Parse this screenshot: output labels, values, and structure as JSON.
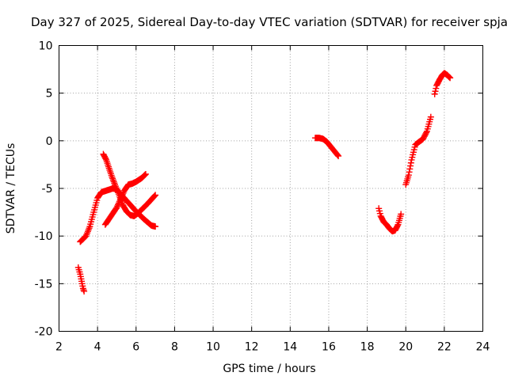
{
  "chart_data": {
    "type": "scatter",
    "title": "Day 327 of 2025, Sidereal Day-to-day VTEC variation (SDTVAR) for receiver spja",
    "xlabel": "GPS time / hours",
    "ylabel": "SDTVAR / TECUs",
    "xlim": [
      2,
      24
    ],
    "ylim": [
      -20,
      10
    ],
    "xticks": [
      "2",
      "4",
      "6",
      "8",
      "10",
      "12",
      "14",
      "16",
      "18",
      "20",
      "22",
      "24"
    ],
    "yticks": [
      "10",
      "5",
      "0",
      "-5",
      "-10",
      "-15",
      "-20"
    ],
    "grid": true,
    "marker": "plus",
    "color": "#ff0000",
    "series": [
      {
        "x": [
          3.0,
          3.1,
          3.15,
          3.2,
          3.25,
          3.3
        ],
        "y": [
          -13.3,
          -14.0,
          -14.5,
          -15.0,
          -15.5,
          -15.8
        ]
      },
      {
        "x": [
          3.1,
          3.2,
          3.4,
          3.6,
          3.8,
          4.0,
          4.2,
          4.5,
          4.8,
          5.0,
          5.2,
          5.6,
          6.0,
          6.4,
          6.8,
          7.0
        ],
        "y": [
          -10.6,
          -10.4,
          -10.0,
          -9.0,
          -7.5,
          -6.0,
          -5.4,
          -5.2,
          -5.0,
          -5.1,
          -5.6,
          -6.5,
          -7.4,
          -8.2,
          -8.9,
          -9.0
        ]
      },
      {
        "x": [
          4.3,
          4.45,
          4.6,
          4.75,
          4.9,
          5.1,
          5.3,
          5.5,
          5.7,
          5.9,
          6.1,
          6.3,
          6.6,
          7.0
        ],
        "y": [
          -1.4,
          -2.0,
          -2.9,
          -3.8,
          -4.6,
          -5.6,
          -6.7,
          -7.4,
          -7.8,
          -7.9,
          -7.6,
          -7.2,
          -6.6,
          -5.7
        ]
      },
      {
        "x": [
          4.4,
          4.7,
          5.0,
          5.2,
          5.4,
          5.6,
          5.8,
          6.0,
          6.3,
          6.5
        ],
        "y": [
          -8.8,
          -7.9,
          -7.0,
          -6.1,
          -5.2,
          -4.6,
          -4.5,
          -4.3,
          -3.9,
          -3.5
        ]
      },
      {
        "x": [
          15.3,
          15.5,
          15.7,
          15.9,
          16.1,
          16.3,
          16.5
        ],
        "y": [
          0.3,
          0.3,
          0.2,
          -0.1,
          -0.6,
          -1.1,
          -1.6
        ]
      },
      {
        "x": [
          18.6,
          18.7,
          18.85,
          19.0,
          19.15,
          19.3,
          19.45,
          19.6,
          19.75
        ],
        "y": [
          -7.1,
          -7.9,
          -8.5,
          -8.8,
          -9.2,
          -9.5,
          -9.4,
          -8.8,
          -7.7
        ]
      },
      {
        "x": [
          20.0,
          20.15,
          20.3,
          20.5,
          20.7,
          20.9,
          21.1,
          21.3
        ],
        "y": [
          -4.6,
          -3.6,
          -2.0,
          -0.4,
          -0.1,
          0.2,
          1.0,
          2.5
        ]
      },
      {
        "x": [
          21.5,
          21.6,
          21.75,
          21.9,
          22.0,
          22.15,
          22.3
        ],
        "y": [
          4.9,
          5.8,
          6.4,
          6.9,
          7.1,
          6.9,
          6.6
        ]
      }
    ]
  }
}
